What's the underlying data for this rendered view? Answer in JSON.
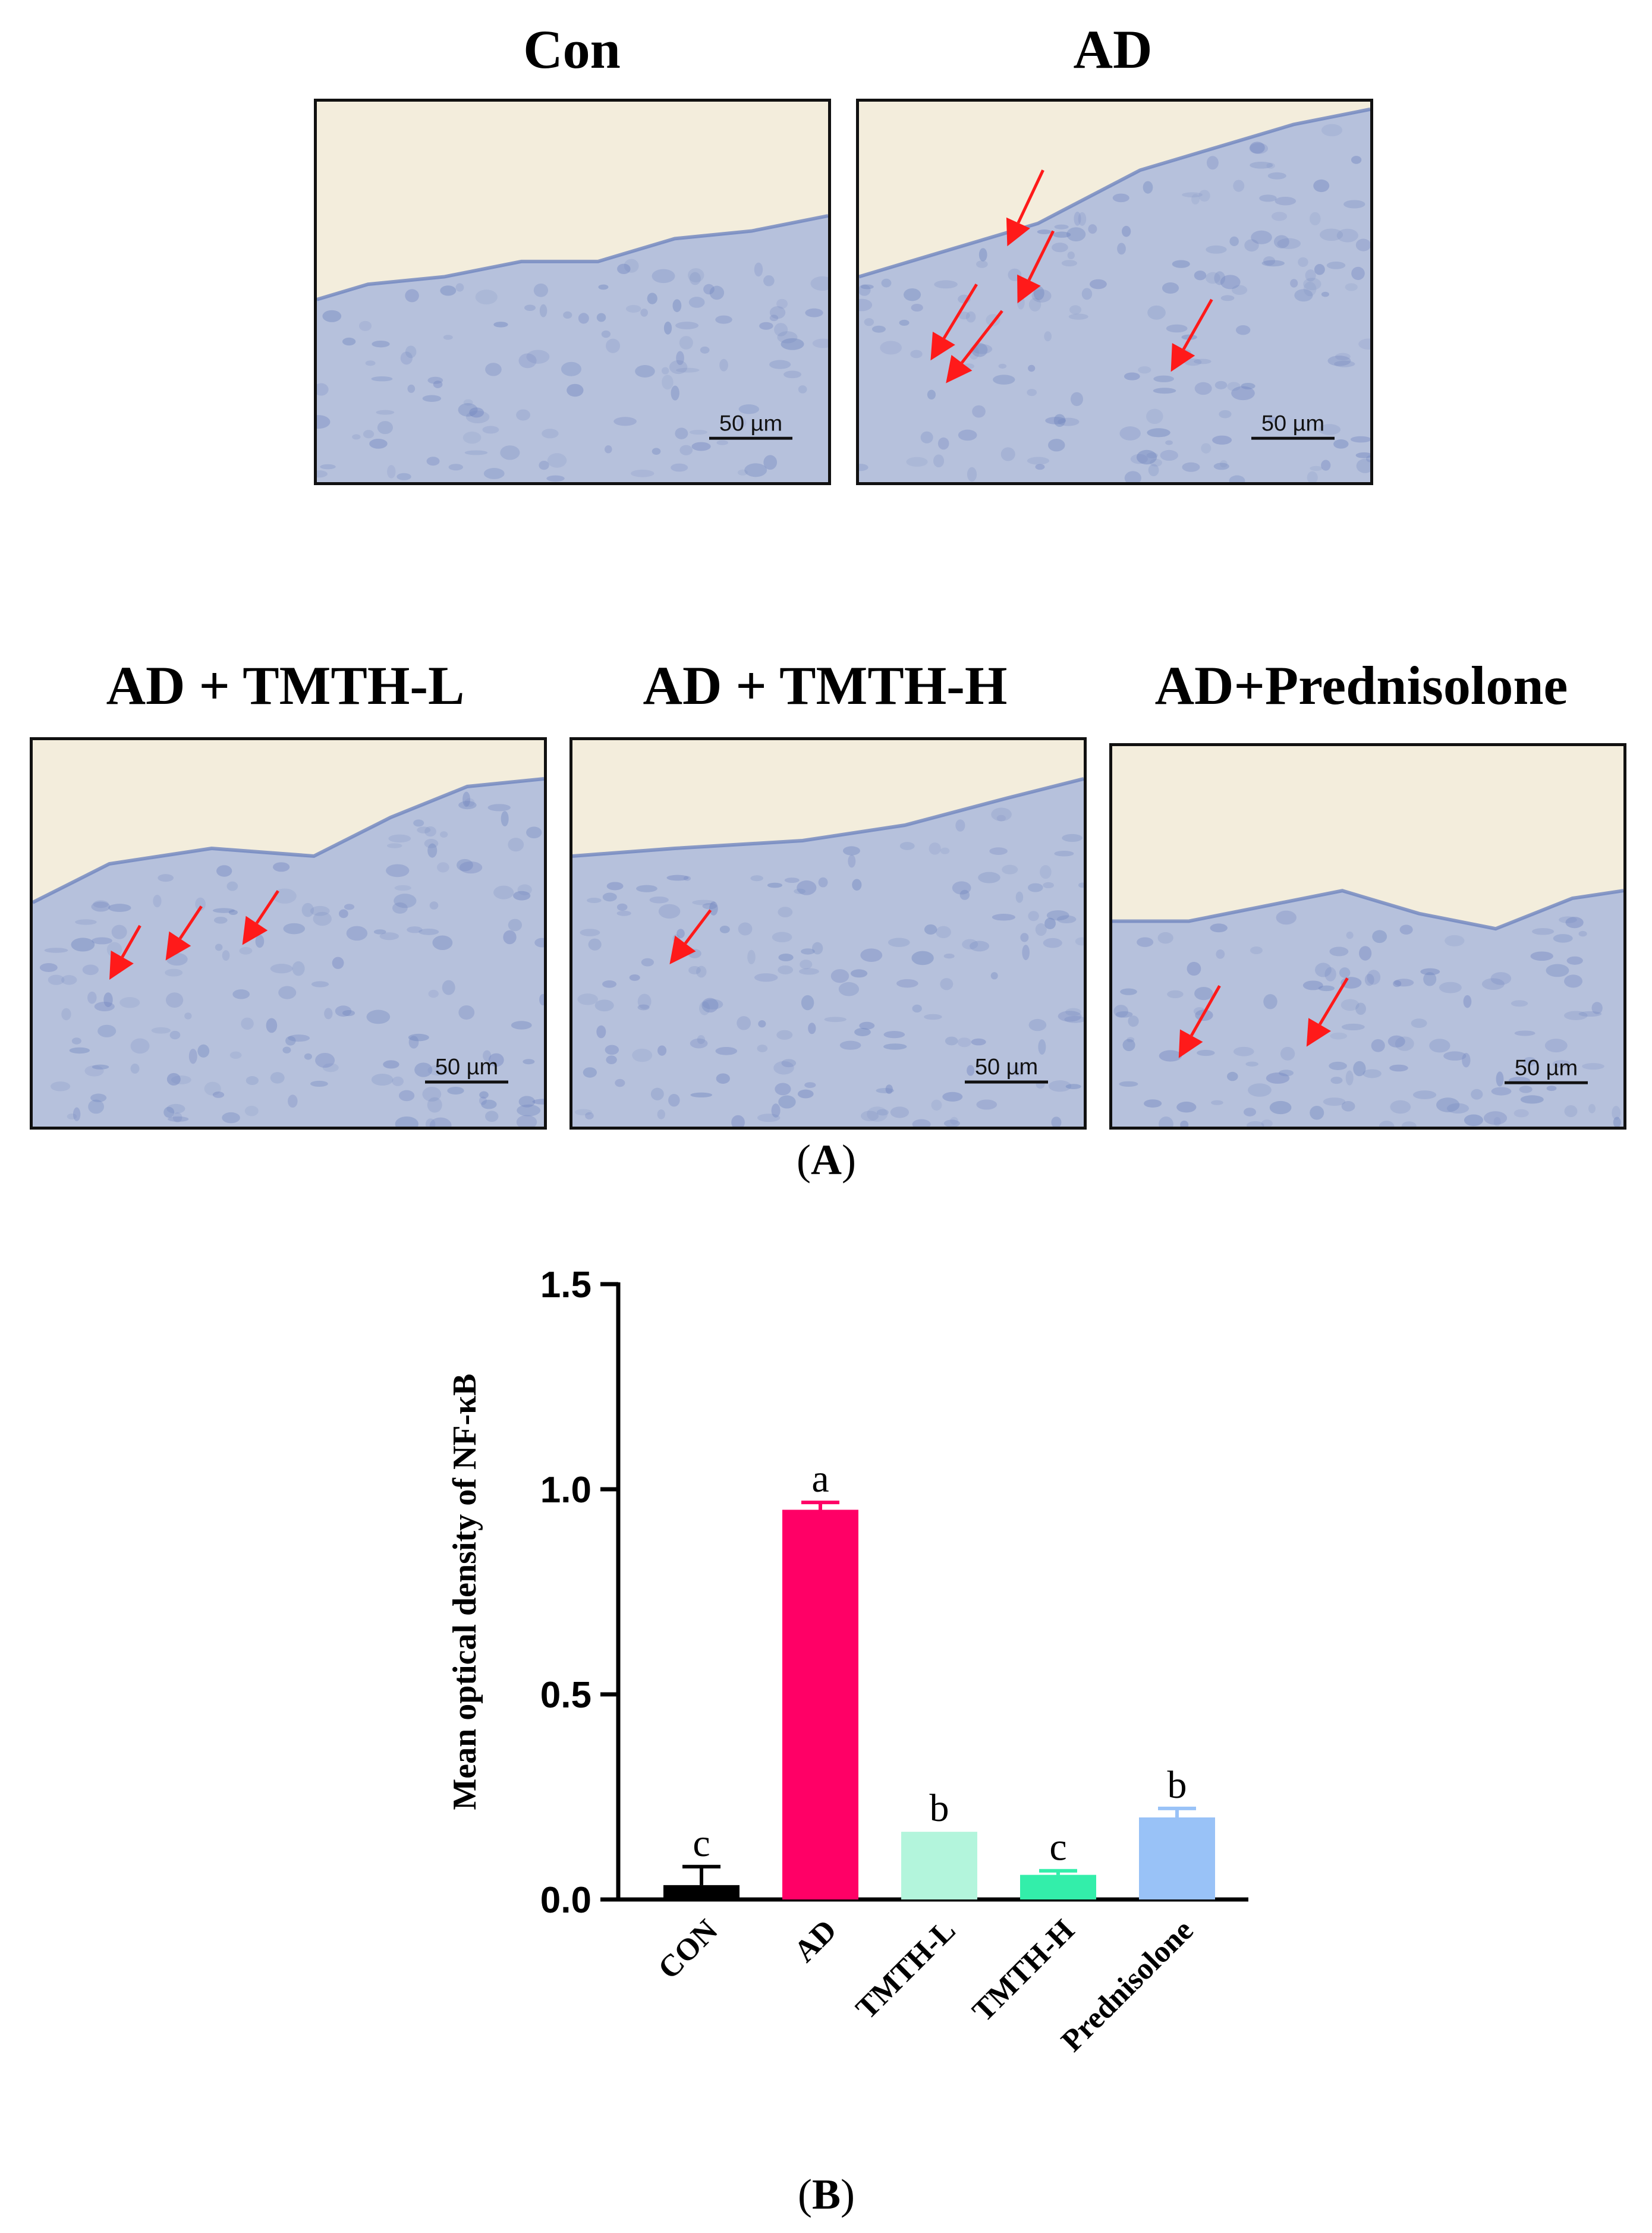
{
  "panel_a": {
    "caption_open": "(",
    "caption_letter": "A",
    "caption_close": ")",
    "images": [
      {
        "title": "Con",
        "scale_bar": "50 µm",
        "arrows": 0
      },
      {
        "title": "AD",
        "scale_bar": "50 µm",
        "arrows": 5
      },
      {
        "title": "AD + TMTH-L",
        "scale_bar": "50 µm",
        "arrows": 3
      },
      {
        "title": "AD + TMTH-H",
        "scale_bar": "50 µm",
        "arrows": 1
      },
      {
        "title": "AD+Prednisolone",
        "scale_bar": "50 µm",
        "arrows": 2
      }
    ],
    "colors": {
      "background": "#f3eddc",
      "tissue": "#aab8dc",
      "tissue_dark": "#6f84bf",
      "arrow": "#ff1a1a"
    }
  },
  "panel_b": {
    "caption_open": "(",
    "caption_letter": "B",
    "caption_close": ")"
  },
  "chart_data": {
    "type": "bar",
    "title": "",
    "xlabel": "",
    "ylabel": "Mean optical density of NF-κB",
    "ylim": [
      0,
      1.5
    ],
    "yticks": [
      "0.0",
      "0.5",
      "1.0",
      "1.5"
    ],
    "ytick_values": [
      0,
      0.5,
      1.0,
      1.5
    ],
    "categories": [
      "CON",
      "AD",
      "TMTH-L",
      "TMTH-H",
      "Prednisolone"
    ],
    "values": [
      0.035,
      0.95,
      0.165,
      0.06,
      0.2
    ],
    "errors": [
      0.045,
      0.018,
      0.0,
      0.01,
      0.022
    ],
    "significance": [
      "c",
      "a",
      "b",
      "c",
      "b"
    ],
    "colors": [
      "#000000",
      "#ff0066",
      "#b3f5dc",
      "#33eeaa",
      "#99c2f7"
    ],
    "grid": false,
    "legend": "none"
  }
}
